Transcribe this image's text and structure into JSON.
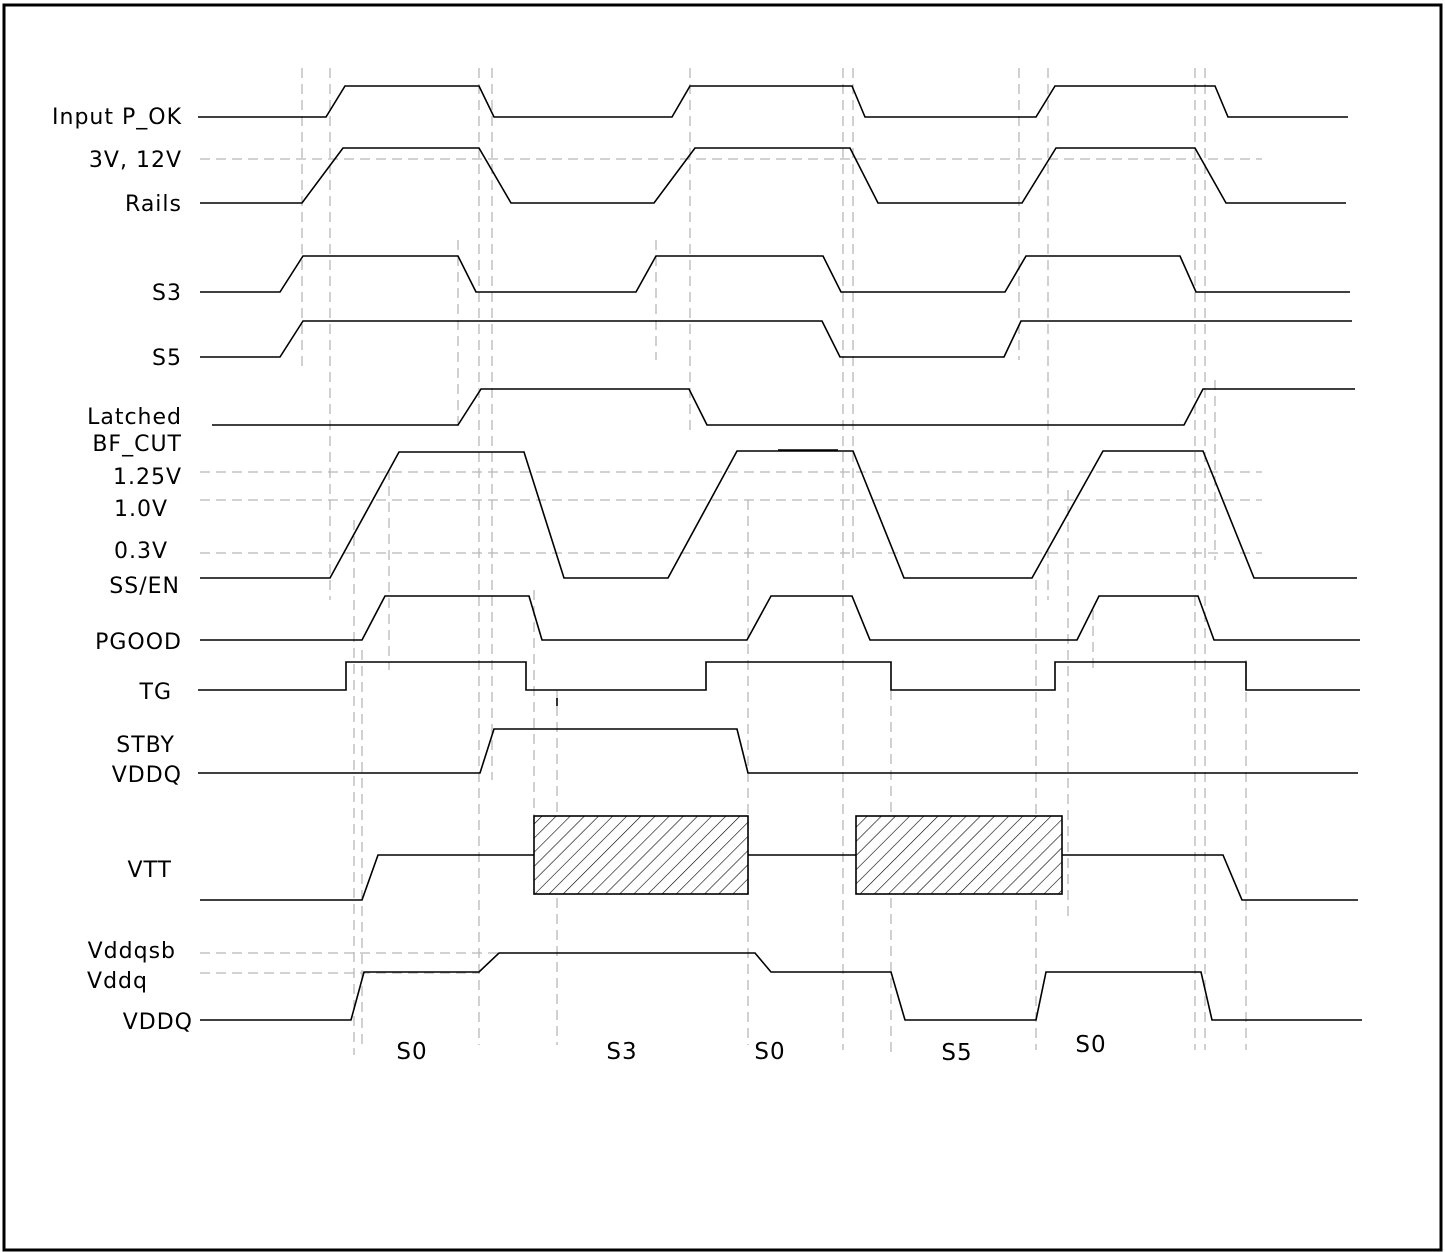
{
  "signals": [
    {
      "key": "input_pok",
      "label": "Input P_OK"
    },
    {
      "key": "rails_a",
      "label": "3V, 12V"
    },
    {
      "key": "rails_b",
      "label": "Rails"
    },
    {
      "key": "s3",
      "label": "S3"
    },
    {
      "key": "s5",
      "label": "S5"
    },
    {
      "key": "latched_a",
      "label": "Latched"
    },
    {
      "key": "latched_b",
      "label": "BF_CUT"
    },
    {
      "key": "v125",
      "label": "1.25V"
    },
    {
      "key": "v10",
      "label": "1.0V"
    },
    {
      "key": "v03",
      "label": "0.3V"
    },
    {
      "key": "ssen",
      "label": "SS/EN"
    },
    {
      "key": "pgood",
      "label": "PGOOD"
    },
    {
      "key": "tg",
      "label": "TG"
    },
    {
      "key": "stby_a",
      "label": "STBY"
    },
    {
      "key": "stby_b",
      "label": "VDDQ"
    },
    {
      "key": "vtt",
      "label": "VTT"
    },
    {
      "key": "vddqsb",
      "label": "Vddqsb"
    },
    {
      "key": "vddq",
      "label": "Vddq"
    },
    {
      "key": "vddq_main",
      "label": "VDDQ"
    }
  ],
  "states": [
    "S0",
    "S3",
    "S0",
    "S5",
    "S0"
  ]
}
